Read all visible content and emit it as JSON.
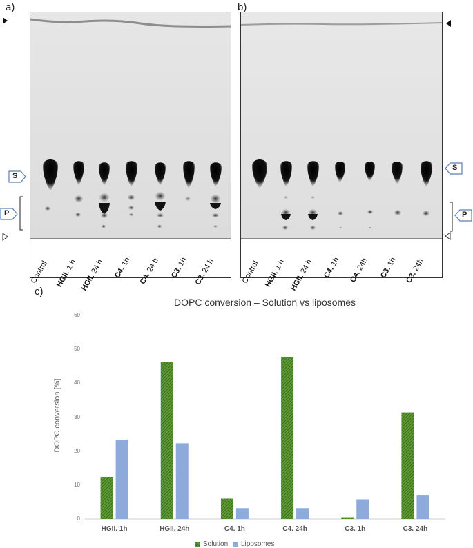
{
  "figure": {
    "panel_a_label": "a)",
    "panel_b_label": "b)",
    "panel_c_label": "c)",
    "spot_label_s": "S",
    "spot_label_p": "P"
  },
  "panel_a": {
    "lanes": [
      {
        "bold": "",
        "rest": "Control"
      },
      {
        "bold": "HGII.",
        "rest": " 1 h"
      },
      {
        "bold": "HGII.",
        "rest": " 24 h"
      },
      {
        "bold": "C4.",
        "rest": " 1h"
      },
      {
        "bold": "C4.",
        "rest": " 24 h"
      },
      {
        "bold": "C3.",
        "rest": " 1h"
      },
      {
        "bold": "C3.",
        "rest": " 24 h"
      }
    ]
  },
  "panel_b": {
    "lanes": [
      {
        "bold": "",
        "rest": "Control"
      },
      {
        "bold": "HGII.",
        "rest": " 1 h"
      },
      {
        "bold": "HGII.",
        "rest": " 24 h"
      },
      {
        "bold": "C4.",
        "rest": " 1h"
      },
      {
        "bold": "C4.",
        "rest": " 24h"
      },
      {
        "bold": "C3.",
        "rest": " 1h"
      },
      {
        "bold": "C3.",
        "rest": " 24h"
      }
    ]
  },
  "colors": {
    "solution": "#4e8a2a",
    "liposomes": "#8eaadb"
  },
  "chart_data": {
    "type": "bar",
    "title": "DOPC conversion – Solution vs liposomes",
    "xlabel": "",
    "ylabel": "DOPC conversion [%]",
    "ylim": [
      0,
      60
    ],
    "yticks": [
      0,
      10,
      20,
      30,
      40,
      50,
      60
    ],
    "categories": [
      "HGII. 1h",
      "HGII. 24h",
      "C4. 1h",
      "C4. 24h",
      "C3. 1h",
      "C3. 24h"
    ],
    "series": [
      {
        "name": "Solution",
        "values": [
          12.4,
          46.3,
          6.0,
          47.8,
          0.5,
          31.4
        ]
      },
      {
        "name": "Liposomes",
        "values": [
          23.4,
          22.3,
          3.2,
          3.2,
          5.8,
          7.1
        ]
      }
    ],
    "legend": "bottom",
    "grid": false
  }
}
